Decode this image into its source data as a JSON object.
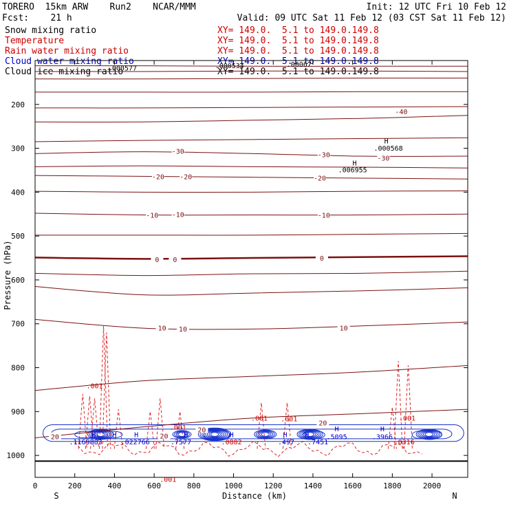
{
  "header": {
    "model": "TORERO  15km ARW    Run2    NCAR/MMM",
    "init": "Init: 12 UTC Fri 10 Feb 12",
    "fcst": "Fcst:    21 h",
    "valid": "Valid: 09 UTC Sat 11 Feb 12 (03 CST Sat 11 Feb 12)"
  },
  "legend": [
    {
      "name": "Snow mixing ratio",
      "xy": "XY= 149.0.  5.1 to 149.0.149.8",
      "color": "#000000"
    },
    {
      "name": "Temperature",
      "xy": "XY= 149.0.  5.1 to 149.0.149.8",
      "color": "#cc0000"
    },
    {
      "name": "Rain water mixing ratio",
      "xy": "XY= 149.0.  5.1 to 149.0.149.8",
      "color": "#cc0000"
    },
    {
      "name": "Cloud water mixing ratio",
      "xy": "XY= 149.0.  5.1 to 149.0.149.8",
      "color": "#0000cc"
    },
    {
      "name": "Cloud ice mixing ratio",
      "xy": "XY= 149.0.  5.1 to 149.0.149.8",
      "color": "#000000"
    }
  ],
  "chart_data": {
    "type": "contour",
    "xlabel": "Distance (km)",
    "ylabel": "Pressure (hPa)",
    "xlim": [
      0,
      2180
    ],
    "ylim": [
      1050,
      100
    ],
    "xticks": [
      0,
      200,
      400,
      600,
      800,
      1000,
      1200,
      1400,
      1600,
      1800,
      2000
    ],
    "yticks": [
      200,
      300,
      400,
      500,
      600,
      700,
      800,
      900,
      1000
    ],
    "direction_labels": {
      "left": "S",
      "right": "N"
    },
    "ground_level_hPa": 1013,
    "temperature_contours": [
      {
        "p": [
          112,
          112,
          113,
          113,
          113
        ],
        "level": null,
        "labels": []
      },
      {
        "p": [
          125,
          125,
          124,
          124,
          125
        ],
        "level": null,
        "labels": []
      },
      {
        "p": [
          142,
          142,
          141,
          140,
          140
        ],
        "level": null,
        "labels": []
      },
      {
        "p": [
          172,
          172,
          172,
          171,
          171
        ],
        "level": null,
        "labels": []
      },
      {
        "p": [
          208,
          208,
          207,
          206,
          205
        ],
        "level": null,
        "labels": []
      },
      {
        "p": [
          240,
          240,
          236,
          232,
          225
        ],
        "level": -40,
        "labels": [
          {
            "x": 1845,
            "p": 216,
            "text": "-40"
          }
        ]
      },
      {
        "p": [
          285,
          282,
          280,
          278,
          276
        ],
        "level": null,
        "labels": []
      },
      {
        "p": [
          312,
          308,
          312,
          318,
          318
        ],
        "level": -30,
        "labels": [
          {
            "x": 720,
            "p": 306,
            "text": "-30"
          },
          {
            "x": 1455,
            "p": 314,
            "text": "-30"
          },
          {
            "x": 1755,
            "p": 322,
            "text": "-30"
          }
        ]
      },
      {
        "p": [
          342,
          340,
          342,
          343,
          345
        ],
        "level": null,
        "labels": []
      },
      {
        "p": [
          362,
          364,
          366,
          368,
          370
        ],
        "level": -20,
        "labels": [
          {
            "x": 620,
            "p": 364,
            "text": "-20"
          },
          {
            "x": 760,
            "p": 364,
            "text": "-20"
          },
          {
            "x": 1435,
            "p": 367,
            "text": "-20"
          }
        ]
      },
      {
        "p": [
          398,
          400,
          400,
          398,
          397
        ],
        "level": null,
        "labels": []
      },
      {
        "p": [
          448,
          452,
          452,
          452,
          450
        ],
        "level": -10,
        "labels": [
          {
            "x": 590,
            "p": 452,
            "text": "-10"
          },
          {
            "x": 720,
            "p": 450,
            "text": "-10"
          },
          {
            "x": 1455,
            "p": 452,
            "text": "-10"
          }
        ]
      },
      {
        "p": [
          498,
          498,
          498,
          496,
          494
        ],
        "level": null,
        "labels": []
      },
      {
        "p": [
          549,
          552,
          550,
          548,
          546
        ],
        "level": 0,
        "labels": [
          {
            "x": 615,
            "p": 553,
            "text": "0"
          },
          {
            "x": 705,
            "p": 553,
            "text": "0"
          },
          {
            "x": 1445,
            "p": 550,
            "text": "0"
          }
        ],
        "bold": true
      },
      {
        "p": [
          585,
          590,
          586,
          585,
          580
        ],
        "level": null,
        "labels": []
      },
      {
        "p": [
          615,
          634,
          630,
          625,
          618
        ],
        "level": null,
        "labels": []
      },
      {
        "p": [
          690,
          710,
          712,
          705,
          696
        ],
        "level": 10,
        "labels": [
          {
            "x": 640,
            "p": 709,
            "text": "10"
          },
          {
            "x": 745,
            "p": 711,
            "text": "10"
          },
          {
            "x": 1555,
            "p": 709,
            "text": "10"
          }
        ]
      },
      {
        "p": [
          852,
          830,
          820,
          810,
          795
        ],
        "level": null,
        "labels": []
      },
      {
        "p": [
          960,
          935,
          915,
          905,
          895
        ],
        "level": 20,
        "labels": [
          {
            "x": 1450,
            "p": 925,
            "text": "20"
          },
          {
            "x": 840,
            "p": 941,
            "text": "20"
          },
          {
            "x": 100,
            "p": 957,
            "text": "20"
          },
          {
            "x": 650,
            "p": 955,
            "text": "20"
          }
        ]
      }
    ],
    "temperature_x": [
      0,
      545,
      1090,
      1635,
      2180
    ],
    "extrema_labels": [
      {
        "x": 1770,
        "p": 289,
        "text": "H",
        "color": "#000000"
      },
      {
        "x": 1780,
        "p": 305,
        "text": ".000568",
        "color": "#000000"
      },
      {
        "x": 1610,
        "p": 339,
        "text": "H",
        "color": "#000000"
      },
      {
        "x": 1600,
        "p": 355,
        "text": ".006955",
        "color": "#000000"
      },
      {
        "x": 440,
        "p": 123,
        "text": ".000577",
        "color": "#000000"
      },
      {
        "x": 980,
        "p": 117,
        "text": ".000534",
        "color": "#000000"
      },
      {
        "x": 1330,
        "p": 114,
        "text": ".00067",
        "color": "#000000"
      },
      {
        "x": 300,
        "p": 847,
        "text": ".001",
        "color": "#cc0000"
      },
      {
        "x": 1130,
        "p": 921,
        "text": ".001",
        "color": "#cc0000"
      },
      {
        "x": 1280,
        "p": 922,
        "text": ".001",
        "color": "#cc0000"
      },
      {
        "x": 1875,
        "p": 921,
        "text": ".001",
        "color": "#cc0000"
      },
      {
        "x": 720,
        "p": 941,
        "text": ".001",
        "color": "#cc0000"
      },
      {
        "x": 670,
        "p": 1060,
        "text": ".001",
        "color": "#cc0000"
      },
      {
        "x": 295,
        "p": 958,
        "text": "H",
        "color": "#0000cc"
      },
      {
        "x": 255,
        "p": 975,
        "text": ".1169883",
        "color": "#0000cc"
      },
      {
        "x": 400,
        "p": 958,
        "text": "H",
        "color": "#0000cc"
      },
      {
        "x": 510,
        "p": 958,
        "text": "H",
        "color": "#0000cc"
      },
      {
        "x": 505,
        "p": 975,
        "text": ".022766",
        "color": "#0000cc"
      },
      {
        "x": 760,
        "p": 958,
        "text": "H",
        "color": "#0000cc"
      },
      {
        "x": 735,
        "p": 975,
        "text": ".7577",
        "color": "#0000cc"
      },
      {
        "x": 990,
        "p": 958,
        "text": "H",
        "color": "#0000cc"
      },
      {
        "x": 990,
        "p": 975,
        "text": ".0882",
        "color": "#cc0000"
      },
      {
        "x": 1260,
        "p": 958,
        "text": "H",
        "color": "#0000cc"
      },
      {
        "x": 1265,
        "p": 975,
        "text": ".497",
        "color": "#0000cc"
      },
      {
        "x": 1370,
        "p": 958,
        "text": "H",
        "color": "#0000cc"
      },
      {
        "x": 1425,
        "p": 975,
        "text": ".7451",
        "color": "#0000cc"
      },
      {
        "x": 1520,
        "p": 945,
        "text": "H",
        "color": "#0000cc"
      },
      {
        "x": 1520,
        "p": 963,
        "text": ".5095",
        "color": "#0000cc"
      },
      {
        "x": 1750,
        "p": 945,
        "text": "H",
        "color": "#0000cc"
      },
      {
        "x": 1750,
        "p": 963,
        "text": ".3966",
        "color": "#0000cc"
      },
      {
        "x": 1860,
        "p": 975,
        "text": ".0316",
        "color": "#cc0000"
      }
    ],
    "rain_spikes": [
      {
        "x": 240,
        "base": 985,
        "top": 860
      },
      {
        "x": 275,
        "base": 985,
        "top": 865
      },
      {
        "x": 300,
        "base": 985,
        "top": 870
      },
      {
        "x": 345,
        "base": 985,
        "top": 705
      },
      {
        "x": 360,
        "base": 985,
        "top": 720
      },
      {
        "x": 420,
        "base": 985,
        "top": 895
      },
      {
        "x": 580,
        "base": 985,
        "top": 900
      },
      {
        "x": 630,
        "base": 985,
        "top": 870
      },
      {
        "x": 730,
        "base": 985,
        "top": 900
      },
      {
        "x": 1140,
        "base": 985,
        "top": 880
      },
      {
        "x": 1270,
        "base": 985,
        "top": 880
      },
      {
        "x": 1830,
        "base": 985,
        "top": 785
      },
      {
        "x": 1880,
        "base": 985,
        "top": 795
      },
      {
        "x": 1800,
        "base": 985,
        "top": 890
      }
    ],
    "cloud_water_bands": [
      {
        "x0": 40,
        "x1": 2160,
        "p0": 930,
        "p1": 968
      },
      {
        "x0": 80,
        "x1": 2100,
        "p0": 940,
        "p1": 962
      },
      {
        "x0": 200,
        "x1": 440,
        "p0": 945,
        "p1": 960
      },
      {
        "x0": 850,
        "x1": 980,
        "p0": 942,
        "p1": 965
      },
      {
        "x0": 1350,
        "x1": 1460,
        "p0": 944,
        "p1": 962
      },
      {
        "x0": 1900,
        "x1": 2050,
        "p0": 944,
        "p1": 962
      }
    ]
  }
}
